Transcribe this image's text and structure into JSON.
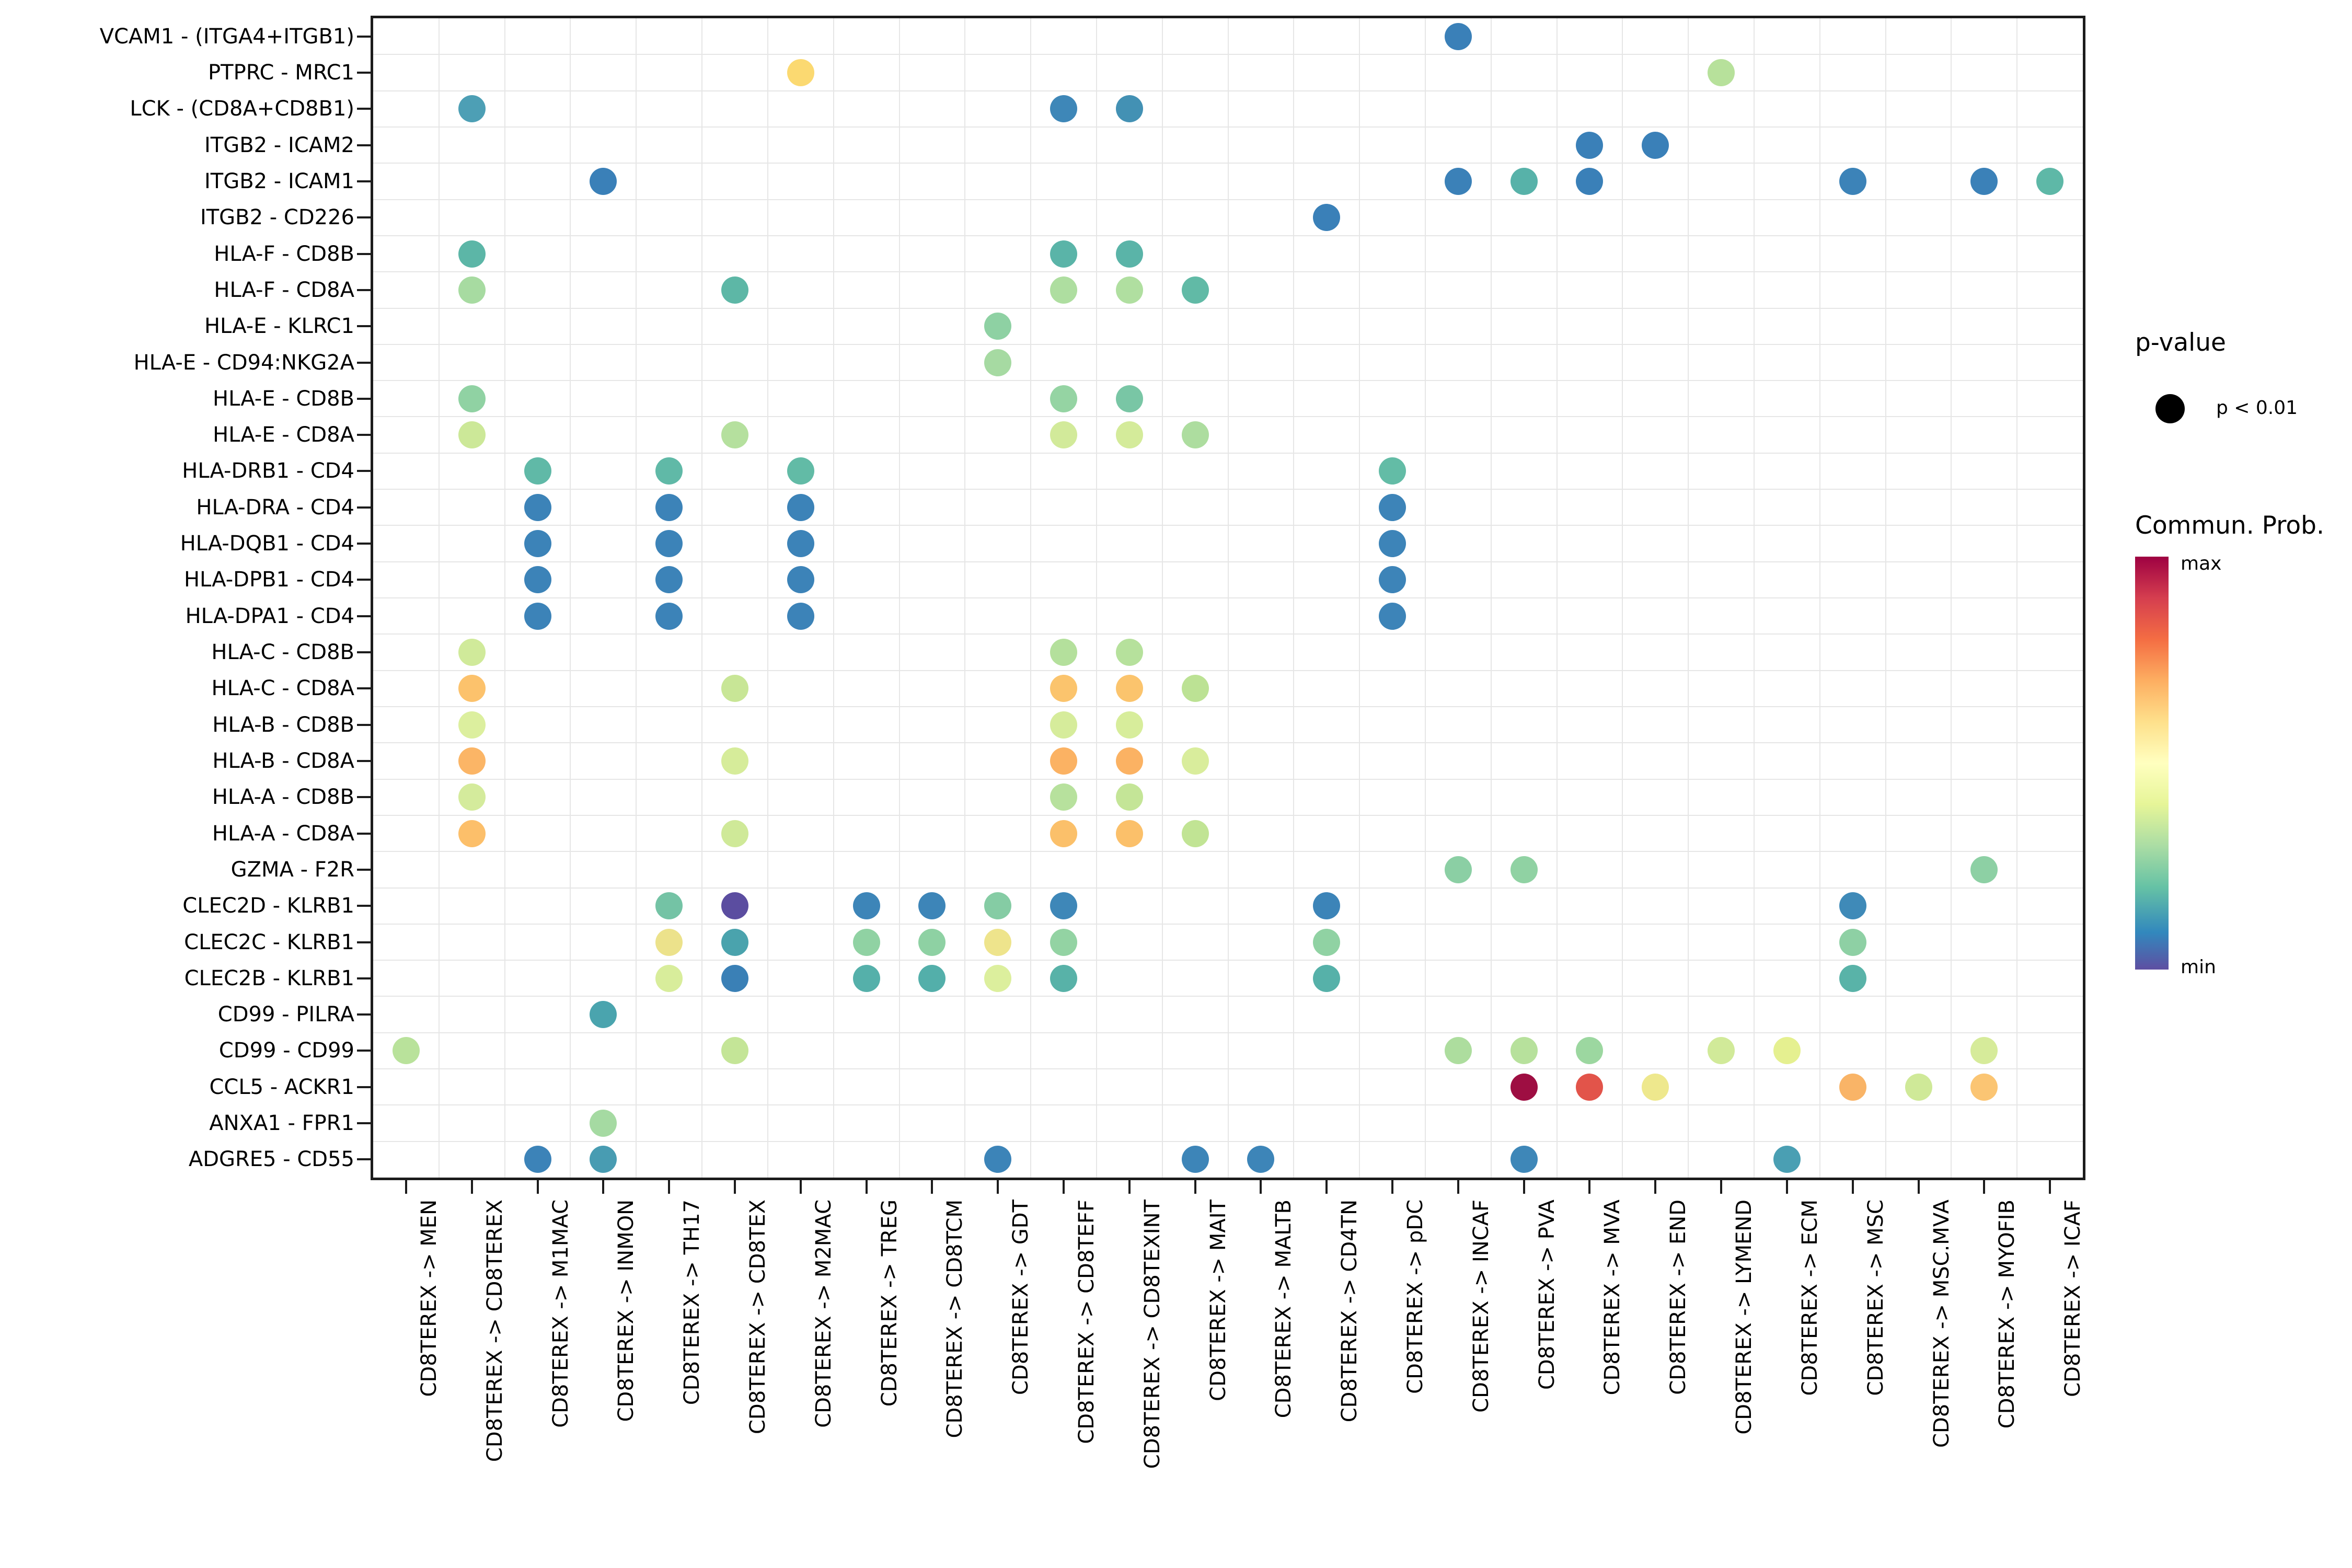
{
  "chart_data": {
    "type": "scatter",
    "subtype": "bubble-dotplot",
    "description": "Cell-cell communication bubble plot; dot color encodes communication probability (Spectral colormap, min=purple to max=dark red); all shown dots have p < 0.01",
    "rows": [
      "VCAM1 - (ITGA4+ITGB1)",
      "PTPRC - MRC1",
      "LCK - (CD8A+CD8B1)",
      "ITGB2 - ICAM2",
      "ITGB2 - ICAM1",
      "ITGB2 - CD226",
      "HLA-F - CD8B",
      "HLA-F - CD8A",
      "HLA-E - KLRC1",
      "HLA-E - CD94:NKG2A",
      "HLA-E - CD8B",
      "HLA-E - CD8A",
      "HLA-DRB1 - CD4",
      "HLA-DRA - CD4",
      "HLA-DQB1 - CD4",
      "HLA-DPB1 - CD4",
      "HLA-DPA1 - CD4",
      "HLA-C - CD8B",
      "HLA-C - CD8A",
      "HLA-B - CD8B",
      "HLA-B - CD8A",
      "HLA-A - CD8B",
      "HLA-A - CD8A",
      "GZMA - F2R",
      "CLEC2D - KLRB1",
      "CLEC2C - KLRB1",
      "CLEC2B - KLRB1",
      "CD99 - PILRA",
      "CD99 - CD99",
      "CCL5 - ACKR1",
      "ANXA1 - FPR1",
      "ADGRE5 - CD55"
    ],
    "cols": [
      "CD8TEREX -> MEN",
      "CD8TEREX -> CD8TEREX",
      "CD8TEREX -> M1MAC",
      "CD8TEREX -> INMON",
      "CD8TEREX -> TH17",
      "CD8TEREX -> CD8TEX",
      "CD8TEREX -> M2MAC",
      "CD8TEREX -> TREG",
      "CD8TEREX -> CD8TCM",
      "CD8TEREX -> GDT",
      "CD8TEREX -> CD8TEFF",
      "CD8TEREX -> CD8TEXINT",
      "CD8TEREX -> MAIT",
      "CD8TEREX -> MALTB",
      "CD8TEREX -> CD4TN",
      "CD8TEREX -> pDC",
      "CD8TEREX -> INCAF",
      "CD8TEREX -> PVA",
      "CD8TEREX -> MVA",
      "CD8TEREX -> END",
      "CD8TEREX -> LYMEND",
      "CD8TEREX -> ECM",
      "CD8TEREX -> MSC",
      "CD8TEREX -> MSC.MVA",
      "CD8TEREX -> MYOFIB",
      "CD8TEREX -> ICAF"
    ],
    "points": [
      [
        0,
        16,
        "#3a80b8"
      ],
      [
        1,
        6,
        "#fbd971"
      ],
      [
        1,
        20,
        "#b7e19b"
      ],
      [
        2,
        1,
        "#4d9fb5"
      ],
      [
        2,
        10,
        "#3e87b8"
      ],
      [
        2,
        11,
        "#4391b4"
      ],
      [
        3,
        18,
        "#3a80b8"
      ],
      [
        3,
        19,
        "#3a80b8"
      ],
      [
        4,
        3,
        "#3a80b8"
      ],
      [
        4,
        16,
        "#3b81b8"
      ],
      [
        4,
        17,
        "#57b2a9"
      ],
      [
        4,
        18,
        "#3a80b8"
      ],
      [
        4,
        22,
        "#3c83b8"
      ],
      [
        4,
        24,
        "#3b81b8"
      ],
      [
        4,
        25,
        "#5eb8a7"
      ],
      [
        5,
        14,
        "#3a80b8"
      ],
      [
        6,
        1,
        "#5cb6a7"
      ],
      [
        6,
        10,
        "#5ab4a8"
      ],
      [
        6,
        11,
        "#5ab4a8"
      ],
      [
        7,
        1,
        "#a7dba1"
      ],
      [
        7,
        5,
        "#5db7a6"
      ],
      [
        7,
        10,
        "#aedea0"
      ],
      [
        7,
        11,
        "#b0dfa0"
      ],
      [
        7,
        12,
        "#61baa6"
      ],
      [
        8,
        9,
        "#8ed1a3"
      ],
      [
        9,
        9,
        "#a6daa2"
      ],
      [
        10,
        1,
        "#90d2a3"
      ],
      [
        10,
        10,
        "#95d4a3"
      ],
      [
        10,
        11,
        "#79c6a5"
      ],
      [
        11,
        1,
        "#cce898"
      ],
      [
        11,
        5,
        "#b5e09e"
      ],
      [
        11,
        10,
        "#d2ea9a"
      ],
      [
        11,
        11,
        "#d4eb9a"
      ],
      [
        11,
        12,
        "#addd9f"
      ],
      [
        12,
        2,
        "#60b9a7"
      ],
      [
        12,
        4,
        "#60b9a7"
      ],
      [
        12,
        6,
        "#62bba6"
      ],
      [
        12,
        15,
        "#63bca6"
      ],
      [
        13,
        2,
        "#3c83b8"
      ],
      [
        13,
        4,
        "#3c83b8"
      ],
      [
        13,
        6,
        "#3c83b8"
      ],
      [
        13,
        15,
        "#3d84b8"
      ],
      [
        14,
        2,
        "#3c83b8"
      ],
      [
        14,
        4,
        "#3c83b8"
      ],
      [
        14,
        6,
        "#3c83b8"
      ],
      [
        14,
        15,
        "#3d84b8"
      ],
      [
        15,
        2,
        "#3c83b8"
      ],
      [
        15,
        4,
        "#3c83b8"
      ],
      [
        15,
        6,
        "#3c83b8"
      ],
      [
        15,
        15,
        "#3d84b8"
      ],
      [
        16,
        2,
        "#3c83b8"
      ],
      [
        16,
        4,
        "#3c83b8"
      ],
      [
        16,
        6,
        "#3c83b8"
      ],
      [
        16,
        15,
        "#3d84b8"
      ],
      [
        17,
        1,
        "#d0ea9a"
      ],
      [
        17,
        10,
        "#b4e09c"
      ],
      [
        17,
        11,
        "#b6e19c"
      ],
      [
        18,
        1,
        "#fcc26c"
      ],
      [
        18,
        5,
        "#c8e696"
      ],
      [
        18,
        10,
        "#fbc46d"
      ],
      [
        18,
        11,
        "#fbc46d"
      ],
      [
        18,
        12,
        "#bce294"
      ],
      [
        19,
        1,
        "#dcef9e"
      ],
      [
        19,
        10,
        "#d6ec9b"
      ],
      [
        19,
        11,
        "#d7ed9b"
      ],
      [
        20,
        1,
        "#fbb566"
      ],
      [
        20,
        5,
        "#d6ec9a"
      ],
      [
        20,
        10,
        "#fbb263"
      ],
      [
        20,
        11,
        "#fbb263"
      ],
      [
        20,
        12,
        "#d9ed9c"
      ],
      [
        21,
        1,
        "#d4eb9c"
      ],
      [
        21,
        10,
        "#b7e19d"
      ],
      [
        21,
        11,
        "#c4e597"
      ],
      [
        22,
        1,
        "#fcbf6a"
      ],
      [
        22,
        5,
        "#cfe998"
      ],
      [
        22,
        10,
        "#fbc06a"
      ],
      [
        22,
        11,
        "#fbc06a"
      ],
      [
        22,
        12,
        "#c1e494"
      ],
      [
        23,
        16,
        "#8bcfa4"
      ],
      [
        23,
        17,
        "#90d2a3"
      ],
      [
        23,
        24,
        "#8dd0a4"
      ],
      [
        24,
        4,
        "#74c3a5"
      ],
      [
        24,
        5,
        "#5b4da0"
      ],
      [
        24,
        7,
        "#3d85b8"
      ],
      [
        24,
        8,
        "#3d85b8"
      ],
      [
        24,
        9,
        "#85cca4"
      ],
      [
        24,
        10,
        "#3e87b8"
      ],
      [
        24,
        14,
        "#3c84b8"
      ],
      [
        24,
        22,
        "#3f8ab8"
      ],
      [
        25,
        4,
        "#ece28b"
      ],
      [
        25,
        5,
        "#4aa3ad"
      ],
      [
        25,
        7,
        "#90d2a3"
      ],
      [
        25,
        8,
        "#8ed1a3"
      ],
      [
        25,
        9,
        "#eee48c"
      ],
      [
        25,
        10,
        "#93d3a3"
      ],
      [
        25,
        14,
        "#90d2a3"
      ],
      [
        25,
        22,
        "#8ed0a4"
      ],
      [
        26,
        4,
        "#d8ed9b"
      ],
      [
        26,
        5,
        "#3a80b6"
      ],
      [
        26,
        7,
        "#55b0aa"
      ],
      [
        26,
        8,
        "#53afaa"
      ],
      [
        26,
        9,
        "#dcef9d"
      ],
      [
        26,
        10,
        "#58b2a8"
      ],
      [
        26,
        14,
        "#56b1a9"
      ],
      [
        26,
        22,
        "#59b3a8"
      ],
      [
        27,
        3,
        "#4aa4ae"
      ],
      [
        28,
        0,
        "#b9e29b"
      ],
      [
        28,
        5,
        "#c4e597"
      ],
      [
        28,
        16,
        "#addd9e"
      ],
      [
        28,
        17,
        "#b7e19c"
      ],
      [
        28,
        18,
        "#9cd7a0"
      ],
      [
        28,
        20,
        "#d1ea99"
      ],
      [
        28,
        21,
        "#e5f090"
      ],
      [
        28,
        24,
        "#d6eb9a"
      ],
      [
        29,
        17,
        "#9e0e42"
      ],
      [
        29,
        18,
        "#e2544a"
      ],
      [
        29,
        19,
        "#eee88d"
      ],
      [
        29,
        22,
        "#f9b467"
      ],
      [
        29,
        23,
        "#cfe998"
      ],
      [
        29,
        24,
        "#fbc573"
      ],
      [
        30,
        3,
        "#a5daa2"
      ],
      [
        31,
        2,
        "#3c83b8"
      ],
      [
        31,
        3,
        "#489cb2"
      ],
      [
        31,
        9,
        "#3c84b8"
      ],
      [
        31,
        12,
        "#3d85b8"
      ],
      [
        31,
        13,
        "#3d85b8"
      ],
      [
        31,
        17,
        "#3e87b8"
      ],
      [
        31,
        21,
        "#4a9fb3"
      ]
    ],
    "grid": true,
    "legend_position": "right"
  },
  "legend": {
    "pvalue_title": "p-value",
    "pvalue_item": "p < 0.01",
    "pvalue_dot_color": "#000000",
    "prob_title": "Commun. Prob.",
    "max_label": "max",
    "min_label": "min",
    "gradient_stops": [
      "#9e0142",
      "#d53e4f",
      "#f46d43",
      "#fdae61",
      "#fee08b",
      "#ffffbf",
      "#e6f598",
      "#abdda4",
      "#66c2a5",
      "#3288bd",
      "#5e4fa2"
    ]
  }
}
